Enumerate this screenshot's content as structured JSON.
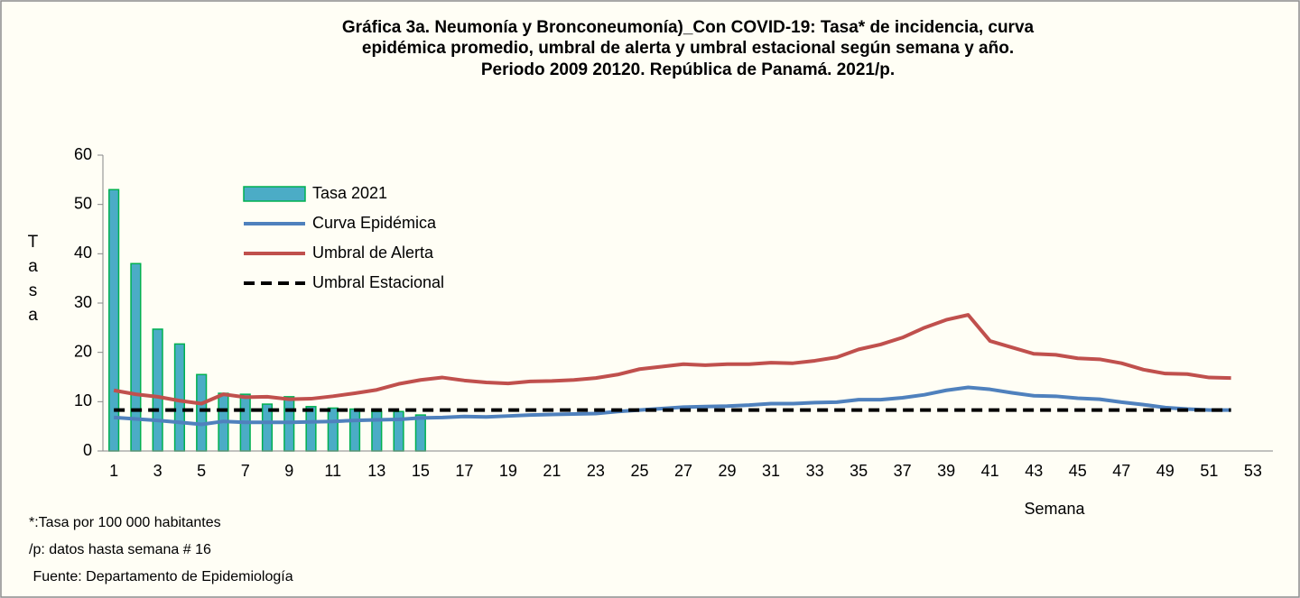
{
  "chart_data": {
    "type": "bar",
    "title": [
      "Gráfica 3a. Neumonía y Bronconeumonía)_Con COVID-19: Tasa* de incidencia, curva",
      "epidémica promedio, umbral de alerta  y umbral estacional según semana y año.",
      "Periodo 2009 20120.  República de Panamá. 2021/p."
    ],
    "x_label": "Semana",
    "y_label": "Tasa",
    "notes": [
      "*:Tasa por 100 000 habitantes",
      "/p: datos hasta semana # 16",
      " Fuente: Departamento de Epidemiología"
    ],
    "categories": [
      1,
      null,
      3,
      null,
      5,
      null,
      7,
      null,
      9,
      null,
      11,
      null,
      13,
      null,
      15,
      null,
      17,
      null,
      19,
      null,
      21,
      null,
      23,
      null,
      25,
      null,
      27,
      null,
      29,
      null,
      31,
      null,
      33,
      null,
      35,
      null,
      37,
      null,
      39,
      null,
      41,
      null,
      43,
      null,
      45,
      null,
      47,
      null,
      49,
      null,
      51,
      null,
      53
    ],
    "ylim": [
      0,
      60
    ],
    "yticks": [
      0,
      10,
      20,
      30,
      40,
      50,
      60
    ],
    "series": [
      {
        "name": "Tasa 2021",
        "type": "bar",
        "color": "#4bacc6",
        "edge": "#00b050",
        "values": [
          53,
          38,
          24.7,
          21.7,
          15.5,
          11.7,
          11.5,
          9.5,
          11,
          9,
          8.7,
          8.5,
          8,
          8,
          7.3,
          null,
          null,
          null,
          null,
          null,
          null,
          null,
          null,
          null,
          null,
          null,
          null,
          null,
          null,
          null,
          null,
          null,
          null,
          null,
          null,
          null,
          null,
          null,
          null,
          null,
          null,
          null,
          null,
          null,
          null,
          null,
          null,
          null,
          null,
          null,
          null,
          null,
          null
        ]
      },
      {
        "name": "Curva Epidémica",
        "type": "line",
        "color": "#4f81bd",
        "values": [
          6.8,
          6.5,
          6.2,
          5.8,
          5.4,
          6,
          5.8,
          5.8,
          5.8,
          5.9,
          6,
          6.2,
          6.3,
          6.4,
          6.7,
          6.8,
          7,
          6.9,
          7.1,
          7.3,
          7.4,
          7.5,
          7.6,
          8,
          8.3,
          8.6,
          8.9,
          9,
          9.1,
          9.3,
          9.6,
          9.6,
          9.8,
          9.9,
          10.4,
          10.4,
          10.8,
          11.4,
          12.3,
          12.9,
          12.5,
          11.8,
          11.2,
          11.1,
          10.7,
          10.5,
          9.9,
          9.4,
          8.8,
          8.5,
          8.3,
          8.3,
          null
        ]
      },
      {
        "name": "Umbral de Alerta",
        "type": "line",
        "color": "#c0504d",
        "values": [
          12.3,
          11.5,
          11,
          10.2,
          9.6,
          11.5,
          10.9,
          11,
          10.5,
          10.6,
          11.1,
          11.7,
          12.4,
          13.6,
          14.4,
          14.9,
          14.3,
          13.9,
          13.7,
          14.1,
          14.2,
          14.4,
          14.8,
          15.5,
          16.6,
          17.1,
          17.6,
          17.4,
          17.6,
          17.6,
          17.9,
          17.8,
          18.3,
          19,
          20.6,
          21.6,
          23,
          25,
          26.6,
          27.6,
          22.3,
          21,
          19.7,
          19.5,
          18.8,
          18.6,
          17.8,
          16.5,
          15.7,
          15.6,
          14.9,
          14.8,
          null
        ]
      },
      {
        "name": "Umbral Estacional",
        "type": "line",
        "dashed": true,
        "color": "#000000",
        "values": [
          8.3,
          8.3,
          8.3,
          8.3,
          8.3,
          8.3,
          8.3,
          8.3,
          8.3,
          8.3,
          8.3,
          8.3,
          8.3,
          8.3,
          8.3,
          8.3,
          8.3,
          8.3,
          8.3,
          8.3,
          8.3,
          8.3,
          8.3,
          8.3,
          8.3,
          8.3,
          8.3,
          8.3,
          8.3,
          8.3,
          8.3,
          8.3,
          8.3,
          8.3,
          8.3,
          8.3,
          8.3,
          8.3,
          8.3,
          8.3,
          8.3,
          8.3,
          8.3,
          8.3,
          8.3,
          8.3,
          8.3,
          8.3,
          8.3,
          8.3,
          8.3,
          8.3,
          null
        ]
      }
    ]
  }
}
